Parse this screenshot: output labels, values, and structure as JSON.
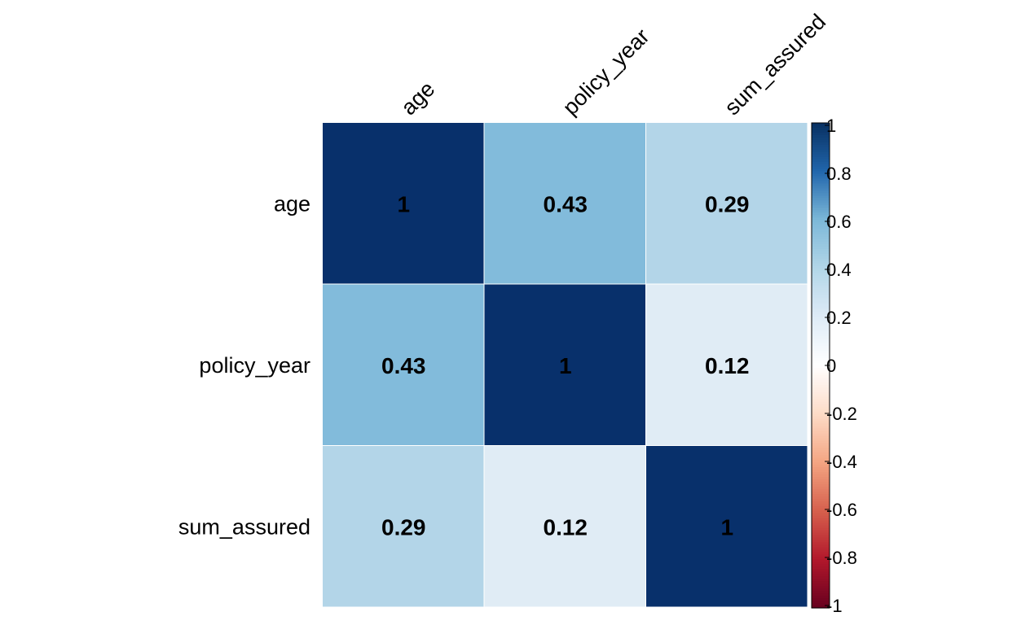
{
  "chart_data": {
    "type": "heatmap",
    "rows": [
      "age",
      "policy_year",
      "sum_assured"
    ],
    "columns": [
      "age",
      "policy_year",
      "sum_assured"
    ],
    "values": [
      [
        1,
        0.43,
        0.29
      ],
      [
        0.43,
        1,
        0.12
      ],
      [
        0.29,
        0.12,
        1
      ]
    ],
    "value_labels": [
      [
        "1",
        "0.43",
        "0.29"
      ],
      [
        "0.43",
        "1",
        "0.12"
      ],
      [
        "0.29",
        "0.12",
        "1"
      ]
    ],
    "colorbar": {
      "range": [
        -1,
        1
      ],
      "ticks": [
        "1",
        "0.8",
        "0.6",
        "0.4",
        "0.2",
        "0",
        "-0.2",
        "-0.4",
        "-0.6",
        "-0.8",
        "-1"
      ],
      "colormap": "RdBu"
    },
    "colors": {
      "strong_positive": "#08306b",
      "neutral": "#ffffff",
      "strong_negative": "#67001f"
    }
  }
}
